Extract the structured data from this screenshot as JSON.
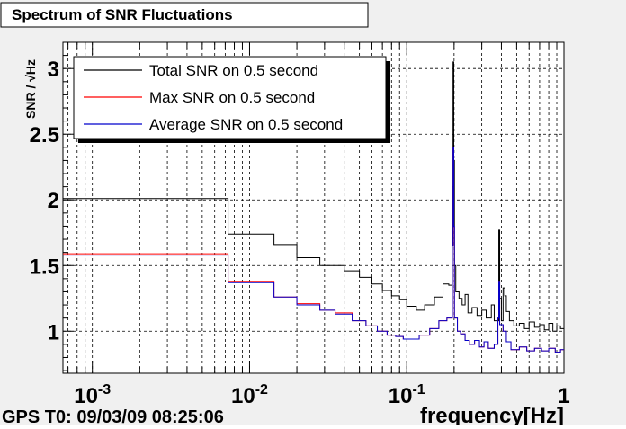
{
  "chart_data": {
    "type": "line",
    "title": "Spectrum of SNR Fluctuations",
    "xlabel": "frequency[Hz]",
    "ylabel": "SNR / √Hz",
    "xscale": "log",
    "xlim": [
      0.00065,
      1.0
    ],
    "ylim": [
      0.68,
      3.2
    ],
    "xticks": [
      {
        "value": 0.001,
        "base": "10",
        "exp": "-3"
      },
      {
        "value": 0.01,
        "base": "10",
        "exp": "-2"
      },
      {
        "value": 0.1,
        "base": "10",
        "exp": "-1"
      },
      {
        "value": 1,
        "base": "1",
        "exp": ""
      }
    ],
    "yticks": [
      {
        "value": 1,
        "label": "1"
      },
      {
        "value": 1.5,
        "label": "1.5"
      },
      {
        "value": 2,
        "label": "2"
      },
      {
        "value": 2.5,
        "label": "2.5"
      },
      {
        "value": 3,
        "label": "3"
      }
    ],
    "grid": true,
    "footer": "GPS T0: 09/03/09 08:25:06",
    "legend_position": "top-left",
    "series": [
      {
        "name": "Total SNR on 0.5 second",
        "color": "#000000",
        "points": [
          [
            0.00065,
            2.01
          ],
          [
            0.0073,
            2.01
          ],
          [
            0.0073,
            1.74
          ],
          [
            0.0143,
            1.74
          ],
          [
            0.0143,
            1.66
          ],
          [
            0.02,
            1.66
          ],
          [
            0.02,
            1.56
          ],
          [
            0.028,
            1.56
          ],
          [
            0.028,
            1.5
          ],
          [
            0.04,
            1.5
          ],
          [
            0.04,
            1.46
          ],
          [
            0.05,
            1.46
          ],
          [
            0.05,
            1.41
          ],
          [
            0.06,
            1.41
          ],
          [
            0.06,
            1.36
          ],
          [
            0.07,
            1.36
          ],
          [
            0.07,
            1.31
          ],
          [
            0.08,
            1.31
          ],
          [
            0.08,
            1.27
          ],
          [
            0.09,
            1.27
          ],
          [
            0.09,
            1.24
          ],
          [
            0.1,
            1.24
          ],
          [
            0.1,
            1.19
          ],
          [
            0.115,
            1.19
          ],
          [
            0.115,
            1.16
          ],
          [
            0.13,
            1.16
          ],
          [
            0.13,
            1.2
          ],
          [
            0.15,
            1.2
          ],
          [
            0.15,
            1.26
          ],
          [
            0.17,
            1.26
          ],
          [
            0.17,
            1.36
          ],
          [
            0.185,
            1.36
          ],
          [
            0.185,
            1.35
          ],
          [
            0.195,
            1.35
          ],
          [
            0.195,
            2.1
          ],
          [
            0.197,
            2.1
          ],
          [
            0.197,
            3.05
          ],
          [
            0.199,
            3.05
          ],
          [
            0.199,
            2.3
          ],
          [
            0.201,
            2.3
          ],
          [
            0.201,
            1.5
          ],
          [
            0.205,
            1.5
          ],
          [
            0.205,
            1.3
          ],
          [
            0.215,
            1.3
          ],
          [
            0.215,
            1.25
          ],
          [
            0.225,
            1.25
          ],
          [
            0.225,
            1.2
          ],
          [
            0.235,
            1.2
          ],
          [
            0.235,
            1.28
          ],
          [
            0.245,
            1.28
          ],
          [
            0.245,
            1.14
          ],
          [
            0.26,
            1.14
          ],
          [
            0.26,
            1.18
          ],
          [
            0.28,
            1.18
          ],
          [
            0.28,
            1.12
          ],
          [
            0.3,
            1.12
          ],
          [
            0.3,
            1.16
          ],
          [
            0.32,
            1.16
          ],
          [
            0.32,
            1.1
          ],
          [
            0.345,
            1.1
          ],
          [
            0.345,
            1.2
          ],
          [
            0.36,
            1.2
          ],
          [
            0.36,
            1.08
          ],
          [
            0.385,
            1.08
          ],
          [
            0.385,
            1.77
          ],
          [
            0.39,
            1.77
          ],
          [
            0.39,
            1.25
          ],
          [
            0.4,
            1.25
          ],
          [
            0.4,
            1.08
          ],
          [
            0.41,
            1.08
          ],
          [
            0.41,
            1.33
          ],
          [
            0.42,
            1.33
          ],
          [
            0.42,
            1.27
          ],
          [
            0.43,
            1.27
          ],
          [
            0.43,
            1.15
          ],
          [
            0.45,
            1.15
          ],
          [
            0.45,
            1.08
          ],
          [
            0.48,
            1.08
          ],
          [
            0.48,
            1.04
          ],
          [
            0.52,
            1.04
          ],
          [
            0.52,
            1.06
          ],
          [
            0.56,
            1.06
          ],
          [
            0.56,
            1.02
          ],
          [
            0.6,
            1.02
          ],
          [
            0.6,
            1.07
          ],
          [
            0.65,
            1.07
          ],
          [
            0.65,
            1.03
          ],
          [
            0.7,
            1.03
          ],
          [
            0.7,
            1.05
          ],
          [
            0.75,
            1.05
          ],
          [
            0.75,
            1.01
          ],
          [
            0.8,
            1.01
          ],
          [
            0.8,
            1.06
          ],
          [
            0.85,
            1.06
          ],
          [
            0.85,
            1.0
          ],
          [
            0.9,
            1.0
          ],
          [
            0.9,
            1.04
          ],
          [
            0.95,
            1.04
          ],
          [
            0.95,
            1.02
          ],
          [
            1.0,
            1.02
          ]
        ]
      },
      {
        "name": "Max SNR on 0.5 second",
        "color": "#ff0000",
        "points": [
          [
            0.00065,
            1.59
          ],
          [
            0.0073,
            1.59
          ],
          [
            0.0073,
            1.38
          ],
          [
            0.0143,
            1.38
          ],
          [
            0.0143,
            1.26
          ],
          [
            0.02,
            1.26
          ],
          [
            0.02,
            1.21
          ],
          [
            0.028,
            1.21
          ],
          [
            0.028,
            1.16
          ],
          [
            0.035,
            1.16
          ],
          [
            0.035,
            1.14
          ],
          [
            0.045,
            1.14
          ],
          [
            0.045,
            1.08
          ],
          [
            0.055,
            1.08
          ],
          [
            0.055,
            1.04
          ],
          [
            0.065,
            1.04
          ],
          [
            0.065,
            1.0
          ],
          [
            0.075,
            1.0
          ],
          [
            0.075,
            0.97
          ],
          [
            0.085,
            0.97
          ],
          [
            0.085,
            0.96
          ],
          [
            0.095,
            0.96
          ],
          [
            0.095,
            0.94
          ],
          [
            0.12,
            0.94
          ],
          [
            0.12,
            0.97
          ],
          [
            0.14,
            0.97
          ],
          [
            0.14,
            1.02
          ],
          [
            0.16,
            1.02
          ],
          [
            0.16,
            1.08
          ],
          [
            0.18,
            1.08
          ],
          [
            0.18,
            1.1
          ],
          [
            0.195,
            1.1
          ],
          [
            0.195,
            1.65
          ],
          [
            0.197,
            1.65
          ],
          [
            0.197,
            2.4
          ],
          [
            0.199,
            2.4
          ],
          [
            0.199,
            1.8
          ],
          [
            0.201,
            1.8
          ],
          [
            0.201,
            1.1
          ],
          [
            0.21,
            1.1
          ],
          [
            0.21,
            1.0
          ],
          [
            0.22,
            1.0
          ],
          [
            0.22,
            0.98
          ],
          [
            0.235,
            0.98
          ],
          [
            0.235,
            0.93
          ],
          [
            0.25,
            0.93
          ],
          [
            0.25,
            0.9
          ],
          [
            0.27,
            0.9
          ],
          [
            0.27,
            0.93
          ],
          [
            0.29,
            0.93
          ],
          [
            0.29,
            0.88
          ],
          [
            0.31,
            0.88
          ],
          [
            0.31,
            0.92
          ],
          [
            0.33,
            0.92
          ],
          [
            0.33,
            0.87
          ],
          [
            0.36,
            0.87
          ],
          [
            0.36,
            0.9
          ],
          [
            0.38,
            0.9
          ],
          [
            0.38,
            1.1
          ],
          [
            0.385,
            1.1
          ],
          [
            0.385,
            1.38
          ],
          [
            0.39,
            1.38
          ],
          [
            0.39,
            1.05
          ],
          [
            0.41,
            1.05
          ],
          [
            0.41,
            1.0
          ],
          [
            0.43,
            1.0
          ],
          [
            0.43,
            0.92
          ],
          [
            0.46,
            0.92
          ],
          [
            0.46,
            0.86
          ],
          [
            0.52,
            0.86
          ],
          [
            0.52,
            0.88
          ],
          [
            0.58,
            0.88
          ],
          [
            0.58,
            0.85
          ],
          [
            0.65,
            0.85
          ],
          [
            0.65,
            0.87
          ],
          [
            0.72,
            0.87
          ],
          [
            0.72,
            0.85
          ],
          [
            0.8,
            0.85
          ],
          [
            0.8,
            0.87
          ],
          [
            0.88,
            0.87
          ],
          [
            0.88,
            0.84
          ],
          [
            0.95,
            0.84
          ],
          [
            0.95,
            0.86
          ],
          [
            1.0,
            0.86
          ]
        ]
      },
      {
        "name": "Average SNR on 0.5 second",
        "color": "#0000cc",
        "points": [
          [
            0.00065,
            1.58
          ],
          [
            0.0073,
            1.58
          ],
          [
            0.0073,
            1.37
          ],
          [
            0.0143,
            1.37
          ],
          [
            0.0143,
            1.26
          ],
          [
            0.02,
            1.26
          ],
          [
            0.02,
            1.2
          ],
          [
            0.028,
            1.2
          ],
          [
            0.028,
            1.16
          ],
          [
            0.035,
            1.16
          ],
          [
            0.035,
            1.13
          ],
          [
            0.045,
            1.13
          ],
          [
            0.045,
            1.08
          ],
          [
            0.055,
            1.08
          ],
          [
            0.055,
            1.04
          ],
          [
            0.065,
            1.04
          ],
          [
            0.065,
            1.0
          ],
          [
            0.075,
            1.0
          ],
          [
            0.075,
            0.97
          ],
          [
            0.085,
            0.97
          ],
          [
            0.085,
            0.96
          ],
          [
            0.095,
            0.96
          ],
          [
            0.095,
            0.94
          ],
          [
            0.12,
            0.94
          ],
          [
            0.12,
            0.97
          ],
          [
            0.14,
            0.97
          ],
          [
            0.14,
            1.02
          ],
          [
            0.16,
            1.02
          ],
          [
            0.16,
            1.08
          ],
          [
            0.18,
            1.08
          ],
          [
            0.18,
            1.1
          ],
          [
            0.195,
            1.1
          ],
          [
            0.195,
            1.65
          ],
          [
            0.197,
            1.65
          ],
          [
            0.197,
            2.4
          ],
          [
            0.199,
            2.4
          ],
          [
            0.199,
            1.8
          ],
          [
            0.201,
            1.8
          ],
          [
            0.201,
            1.1
          ],
          [
            0.21,
            1.1
          ],
          [
            0.21,
            1.0
          ],
          [
            0.22,
            1.0
          ],
          [
            0.22,
            0.98
          ],
          [
            0.235,
            0.98
          ],
          [
            0.235,
            0.93
          ],
          [
            0.25,
            0.93
          ],
          [
            0.25,
            0.9
          ],
          [
            0.27,
            0.9
          ],
          [
            0.27,
            0.93
          ],
          [
            0.29,
            0.93
          ],
          [
            0.29,
            0.88
          ],
          [
            0.31,
            0.88
          ],
          [
            0.31,
            0.92
          ],
          [
            0.33,
            0.92
          ],
          [
            0.33,
            0.87
          ],
          [
            0.36,
            0.87
          ],
          [
            0.36,
            0.9
          ],
          [
            0.38,
            0.9
          ],
          [
            0.38,
            1.1
          ],
          [
            0.385,
            1.1
          ],
          [
            0.385,
            1.38
          ],
          [
            0.39,
            1.38
          ],
          [
            0.39,
            1.05
          ],
          [
            0.41,
            1.05
          ],
          [
            0.41,
            1.0
          ],
          [
            0.43,
            1.0
          ],
          [
            0.43,
            0.92
          ],
          [
            0.46,
            0.92
          ],
          [
            0.46,
            0.86
          ],
          [
            0.52,
            0.86
          ],
          [
            0.52,
            0.88
          ],
          [
            0.58,
            0.88
          ],
          [
            0.58,
            0.85
          ],
          [
            0.65,
            0.85
          ],
          [
            0.65,
            0.87
          ],
          [
            0.72,
            0.87
          ],
          [
            0.72,
            0.85
          ],
          [
            0.8,
            0.85
          ],
          [
            0.8,
            0.87
          ],
          [
            0.88,
            0.87
          ],
          [
            0.88,
            0.84
          ],
          [
            0.95,
            0.84
          ],
          [
            0.95,
            0.86
          ],
          [
            1.0,
            0.86
          ]
        ]
      }
    ]
  }
}
